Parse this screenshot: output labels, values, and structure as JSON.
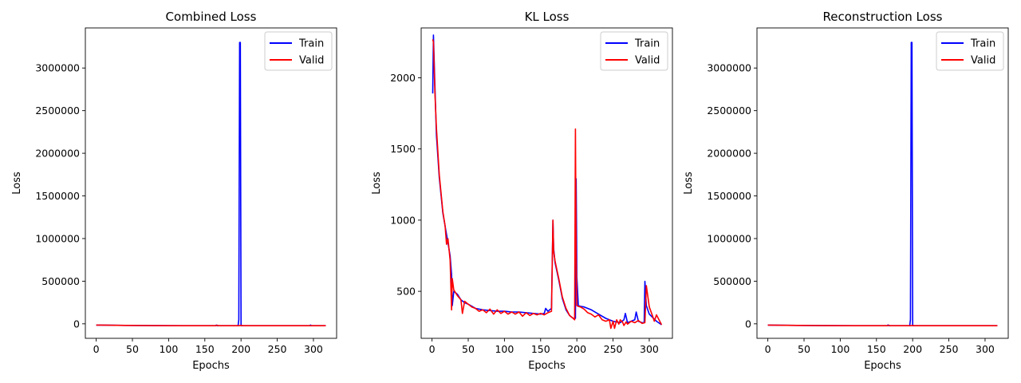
{
  "chart_data": [
    {
      "type": "line",
      "title": "Combined Loss",
      "xlabel": "Epochs",
      "ylabel": "Loss",
      "xlim": [
        -15,
        332
      ],
      "ylim": [
        -170000,
        3470000
      ],
      "xticks": [
        0,
        50,
        100,
        150,
        200,
        250,
        300
      ],
      "yticks": [
        0,
        500000,
        1000000,
        1500000,
        2000000,
        2500000,
        3000000
      ],
      "grid": false,
      "legend_position": "top-right",
      "series": [
        {
          "name": "Train",
          "color": "#0000ff",
          "x": [
            0,
            40,
            80,
            120,
            165,
            166,
            167,
            196,
            197,
            198,
            199,
            200,
            240,
            280,
            295,
            296,
            297,
            317
          ],
          "y": [
            -15000,
            -18000,
            -21000,
            -22000,
            -22000,
            -15000,
            -22000,
            -22000,
            50000,
            3300000,
            3300000,
            -22000,
            -22000,
            -22000,
            -22000,
            -14000,
            -22000,
            -22000
          ]
        },
        {
          "name": "Valid",
          "color": "#ff0000",
          "x": [
            0,
            40,
            80,
            120,
            165,
            167,
            169,
            197,
            200,
            203,
            240,
            280,
            317
          ],
          "y": [
            -15000,
            -18000,
            -21000,
            -22000,
            -22000,
            -17000,
            -22000,
            -22000,
            -18000,
            -22000,
            -22000,
            -22000,
            -22000
          ]
        }
      ]
    },
    {
      "type": "line",
      "title": "KL Loss",
      "xlabel": "Epochs",
      "ylabel": "Loss",
      "xlim": [
        -15,
        332
      ],
      "ylim": [
        170,
        2350
      ],
      "xticks": [
        0,
        50,
        100,
        150,
        200,
        250,
        300
      ],
      "yticks": [
        500,
        1000,
        1500,
        2000
      ],
      "grid": false,
      "legend_position": "top-right",
      "series": [
        {
          "name": "Train",
          "color": "#0000ff",
          "x": [
            1,
            2,
            4,
            6,
            10,
            15,
            20,
            25,
            27,
            28,
            30,
            35,
            40,
            45,
            50,
            60,
            70,
            80,
            90,
            100,
            110,
            120,
            130,
            140,
            150,
            155,
            157,
            160,
            165,
            167,
            168,
            170,
            175,
            180,
            185,
            190,
            195,
            198,
            199,
            200,
            202,
            205,
            210,
            220,
            230,
            240,
            250,
            260,
            265,
            267,
            270,
            280,
            282,
            285,
            290,
            293,
            294,
            296,
            300,
            310,
            317
          ],
          "y": [
            1890,
            2300,
            1950,
            1600,
            1300,
            1050,
            900,
            750,
            620,
            400,
            500,
            480,
            440,
            420,
            410,
            380,
            370,
            365,
            360,
            360,
            355,
            355,
            350,
            345,
            340,
            345,
            380,
            360,
            380,
            1000,
            800,
            700,
            580,
            450,
            370,
            330,
            310,
            310,
            1290,
            600,
            400,
            395,
            390,
            370,
            340,
            310,
            290,
            280,
            300,
            345,
            280,
            300,
            355,
            290,
            280,
            280,
            570,
            400,
            340,
            290,
            265
          ]
        },
        {
          "name": "Valid",
          "color": "#ff0000",
          "x": [
            1,
            2,
            4,
            6,
            10,
            15,
            18,
            20,
            22,
            25,
            27,
            28,
            30,
            35,
            40,
            42,
            45,
            50,
            55,
            60,
            65,
            70,
            75,
            80,
            85,
            90,
            95,
            100,
            105,
            110,
            115,
            120,
            125,
            130,
            135,
            140,
            145,
            150,
            155,
            160,
            165,
            167,
            168,
            170,
            175,
            180,
            185,
            190,
            195,
            197,
            198,
            199,
            200,
            202,
            205,
            210,
            215,
            220,
            225,
            230,
            235,
            240,
            245,
            247,
            250,
            252,
            255,
            258,
            260,
            263,
            265,
            268,
            270,
            275,
            280,
            285,
            290,
            294,
            296,
            300,
            305,
            307,
            310,
            317
          ],
          "y": [
            2270,
            2250,
            1900,
            1650,
            1320,
            1060,
            960,
            830,
            870,
            720,
            370,
            590,
            510,
            470,
            440,
            345,
            430,
            410,
            390,
            380,
            360,
            370,
            350,
            375,
            340,
            370,
            345,
            360,
            340,
            355,
            340,
            355,
            325,
            350,
            330,
            345,
            335,
            345,
            335,
            350,
            360,
            1000,
            780,
            710,
            590,
            460,
            380,
            330,
            310,
            300,
            1640,
            760,
            400,
            395,
            390,
            375,
            350,
            340,
            320,
            335,
            300,
            290,
            300,
            240,
            290,
            240,
            300,
            270,
            300,
            285,
            260,
            285,
            270,
            290,
            280,
            295,
            275,
            280,
            540,
            390,
            320,
            290,
            335,
            265
          ]
        }
      ]
    },
    {
      "type": "line",
      "title": "Reconstruction Loss",
      "xlabel": "Epochs",
      "ylabel": "Loss",
      "xlim": [
        -15,
        332
      ],
      "ylim": [
        -170000,
        3470000
      ],
      "xticks": [
        0,
        50,
        100,
        150,
        200,
        250,
        300
      ],
      "yticks": [
        0,
        500000,
        1000000,
        1500000,
        2000000,
        2500000,
        3000000
      ],
      "grid": false,
      "legend_position": "top-right",
      "series": [
        {
          "name": "Train",
          "color": "#0000ff",
          "x": [
            0,
            40,
            80,
            120,
            165,
            166,
            167,
            196,
            197,
            198,
            199,
            200,
            240,
            280,
            317
          ],
          "y": [
            -15000,
            -18000,
            -21000,
            -22000,
            -22000,
            -13000,
            -22000,
            -22000,
            50000,
            3300000,
            3300000,
            -22000,
            -22000,
            -22000,
            -22000
          ]
        },
        {
          "name": "Valid",
          "color": "#ff0000",
          "x": [
            0,
            40,
            80,
            120,
            165,
            167,
            169,
            197,
            200,
            203,
            240,
            280,
            317
          ],
          "y": [
            -15000,
            -18000,
            -21000,
            -22000,
            -22000,
            -17000,
            -22000,
            -22000,
            -19000,
            -22000,
            -22000,
            -22000,
            -22000
          ]
        }
      ]
    }
  ]
}
